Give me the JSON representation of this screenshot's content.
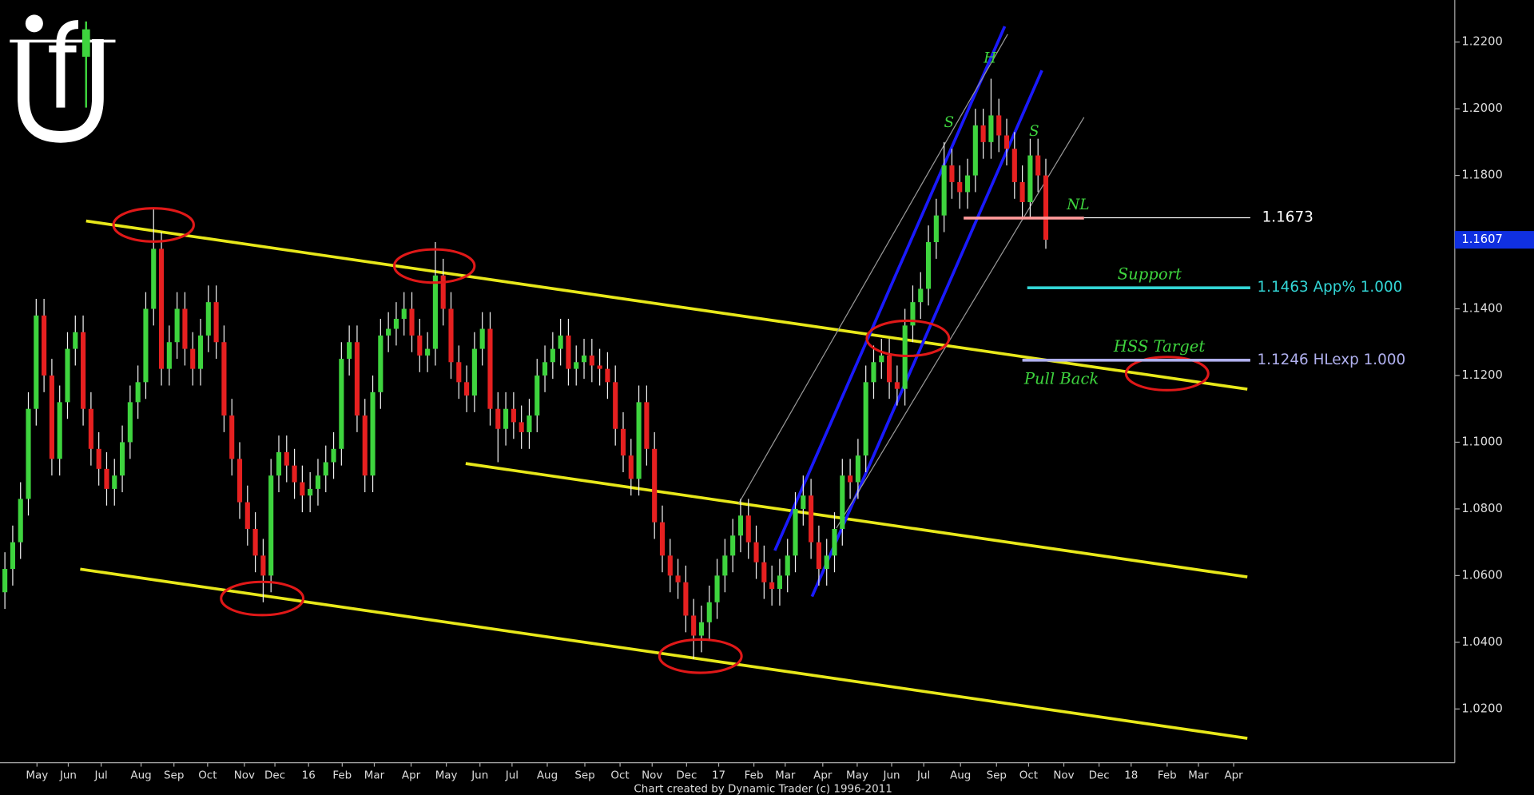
{
  "chart_data": {
    "type": "candlestick",
    "x": [
      0,
      1,
      2,
      3,
      4,
      5,
      6,
      7,
      8,
      9,
      10,
      11,
      12,
      13,
      14,
      15,
      16,
      17,
      18,
      19,
      20,
      21,
      22,
      23,
      24,
      25,
      26,
      27,
      28,
      29,
      30,
      31,
      32,
      33,
      34,
      35,
      36,
      37,
      38,
      39,
      40,
      41,
      42,
      43,
      44,
      45,
      46,
      47,
      48,
      49,
      50,
      51,
      52,
      53,
      54,
      55,
      56,
      57,
      58,
      59,
      60,
      61,
      62,
      63,
      64,
      65,
      66,
      67,
      68,
      69,
      70,
      71,
      72,
      73,
      74,
      75,
      76,
      77,
      78,
      79,
      80,
      81,
      82,
      83,
      84,
      85,
      86,
      87,
      88,
      89,
      90,
      91,
      92,
      93,
      94,
      95,
      96,
      97,
      98,
      99,
      100,
      101,
      102,
      103,
      104,
      105,
      106,
      107,
      108,
      109,
      110,
      111,
      112,
      113,
      114,
      115,
      116,
      117,
      118,
      119,
      120,
      121,
      122,
      123,
      124,
      125,
      126,
      127,
      128,
      129,
      130,
      131,
      132,
      133
    ],
    "open": [
      1.055,
      1.062,
      1.07,
      1.083,
      1.11,
      1.138,
      1.12,
      1.095,
      1.112,
      1.128,
      1.133,
      1.11,
      1.098,
      1.092,
      1.086,
      1.09,
      1.1,
      1.112,
      1.118,
      1.14,
      1.158,
      1.122,
      1.13,
      1.14,
      1.128,
      1.122,
      1.132,
      1.142,
      1.13,
      1.108,
      1.095,
      1.082,
      1.074,
      1.066,
      1.06,
      1.09,
      1.097,
      1.093,
      1.088,
      1.084,
      1.086,
      1.09,
      1.094,
      1.098,
      1.125,
      1.13,
      1.108,
      1.09,
      1.115,
      1.132,
      1.134,
      1.137,
      1.14,
      1.132,
      1.126,
      1.128,
      1.15,
      1.14,
      1.124,
      1.118,
      1.114,
      1.128,
      1.134,
      1.11,
      1.104,
      1.11,
      1.106,
      1.103,
      1.108,
      1.12,
      1.124,
      1.128,
      1.132,
      1.122,
      1.124,
      1.126,
      1.123,
      1.122,
      1.118,
      1.104,
      1.096,
      1.089,
      1.112,
      1.098,
      1.076,
      1.066,
      1.06,
      1.058,
      1.048,
      1.042,
      1.046,
      1.052,
      1.06,
      1.066,
      1.072,
      1.078,
      1.07,
      1.064,
      1.058,
      1.056,
      1.06,
      1.066,
      1.08,
      1.084,
      1.07,
      1.062,
      1.066,
      1.074,
      1.09,
      1.088,
      1.096,
      1.118,
      1.124,
      1.126,
      1.118,
      1.116,
      1.135,
      1.142,
      1.146,
      1.16,
      1.168,
      1.183,
      1.178,
      1.175,
      1.18,
      1.195,
      1.19,
      1.198,
      1.192,
      1.188,
      1.178,
      1.172,
      1.186,
      1.18
    ],
    "high": [
      1.067,
      1.075,
      1.088,
      1.115,
      1.143,
      1.143,
      1.125,
      1.117,
      1.133,
      1.138,
      1.138,
      1.115,
      1.103,
      1.097,
      1.095,
      1.105,
      1.117,
      1.123,
      1.145,
      1.17,
      1.163,
      1.135,
      1.145,
      1.145,
      1.133,
      1.137,
      1.147,
      1.147,
      1.135,
      1.113,
      1.1,
      1.087,
      1.079,
      1.071,
      1.095,
      1.102,
      1.102,
      1.098,
      1.093,
      1.091,
      1.095,
      1.099,
      1.103,
      1.13,
      1.135,
      1.135,
      1.113,
      1.12,
      1.137,
      1.139,
      1.142,
      1.145,
      1.145,
      1.137,
      1.133,
      1.16,
      1.155,
      1.145,
      1.129,
      1.123,
      1.133,
      1.139,
      1.139,
      1.115,
      1.115,
      1.115,
      1.111,
      1.113,
      1.125,
      1.129,
      1.133,
      1.137,
      1.137,
      1.129,
      1.131,
      1.131,
      1.128,
      1.127,
      1.123,
      1.109,
      1.101,
      1.117,
      1.117,
      1.103,
      1.081,
      1.071,
      1.065,
      1.063,
      1.053,
      1.051,
      1.057,
      1.065,
      1.071,
      1.077,
      1.083,
      1.083,
      1.075,
      1.069,
      1.063,
      1.065,
      1.071,
      1.085,
      1.09,
      1.089,
      1.075,
      1.071,
      1.079,
      1.095,
      1.095,
      1.101,
      1.123,
      1.129,
      1.131,
      1.131,
      1.123,
      1.14,
      1.147,
      1.151,
      1.165,
      1.173,
      1.19,
      1.188,
      1.183,
      1.185,
      1.2,
      1.2,
      1.209,
      1.203,
      1.197,
      1.193,
      1.183,
      1.191,
      1.191,
      1.185
    ],
    "low": [
      1.05,
      1.057,
      1.065,
      1.078,
      1.105,
      1.115,
      1.09,
      1.09,
      1.107,
      1.123,
      1.105,
      1.093,
      1.087,
      1.081,
      1.081,
      1.085,
      1.095,
      1.107,
      1.113,
      1.135,
      1.117,
      1.117,
      1.125,
      1.123,
      1.117,
      1.117,
      1.127,
      1.125,
      1.103,
      1.09,
      1.077,
      1.069,
      1.061,
      1.052,
      1.055,
      1.085,
      1.088,
      1.083,
      1.079,
      1.079,
      1.081,
      1.085,
      1.089,
      1.093,
      1.12,
      1.103,
      1.085,
      1.085,
      1.11,
      1.127,
      1.129,
      1.132,
      1.127,
      1.121,
      1.121,
      1.123,
      1.135,
      1.119,
      1.113,
      1.109,
      1.109,
      1.123,
      1.105,
      1.094,
      1.099,
      1.101,
      1.098,
      1.098,
      1.103,
      1.115,
      1.119,
      1.123,
      1.117,
      1.117,
      1.119,
      1.118,
      1.117,
      1.113,
      1.099,
      1.091,
      1.084,
      1.084,
      1.093,
      1.071,
      1.061,
      1.055,
      1.053,
      1.043,
      1.035,
      1.037,
      1.041,
      1.047,
      1.055,
      1.061,
      1.067,
      1.065,
      1.059,
      1.053,
      1.051,
      1.051,
      1.055,
      1.061,
      1.075,
      1.065,
      1.057,
      1.057,
      1.061,
      1.069,
      1.083,
      1.083,
      1.091,
      1.113,
      1.119,
      1.113,
      1.111,
      1.111,
      1.13,
      1.137,
      1.141,
      1.155,
      1.163,
      1.173,
      1.17,
      1.17,
      1.175,
      1.185,
      1.185,
      1.187,
      1.183,
      1.173,
      1.167,
      1.167,
      1.175,
      1.158
    ],
    "close": [
      1.062,
      1.07,
      1.083,
      1.11,
      1.138,
      1.12,
      1.095,
      1.112,
      1.128,
      1.133,
      1.11,
      1.098,
      1.092,
      1.086,
      1.09,
      1.1,
      1.112,
      1.118,
      1.14,
      1.158,
      1.122,
      1.13,
      1.14,
      1.128,
      1.122,
      1.132,
      1.142,
      1.13,
      1.108,
      1.095,
      1.082,
      1.074,
      1.066,
      1.06,
      1.09,
      1.097,
      1.093,
      1.088,
      1.084,
      1.086,
      1.09,
      1.094,
      1.098,
      1.125,
      1.13,
      1.108,
      1.09,
      1.115,
      1.132,
      1.134,
      1.137,
      1.14,
      1.132,
      1.126,
      1.128,
      1.15,
      1.14,
      1.124,
      1.118,
      1.114,
      1.128,
      1.134,
      1.11,
      1.104,
      1.11,
      1.106,
      1.103,
      1.108,
      1.12,
      1.124,
      1.128,
      1.132,
      1.122,
      1.124,
      1.126,
      1.123,
      1.122,
      1.118,
      1.104,
      1.096,
      1.089,
      1.112,
      1.098,
      1.076,
      1.066,
      1.06,
      1.058,
      1.048,
      1.042,
      1.046,
      1.052,
      1.06,
      1.066,
      1.072,
      1.078,
      1.07,
      1.064,
      1.058,
      1.056,
      1.06,
      1.066,
      1.08,
      1.084,
      1.07,
      1.062,
      1.066,
      1.074,
      1.09,
      1.088,
      1.096,
      1.118,
      1.124,
      1.126,
      1.118,
      1.116,
      1.135,
      1.142,
      1.146,
      1.16,
      1.168,
      1.183,
      1.178,
      1.175,
      1.18,
      1.195,
      1.19,
      1.198,
      1.192,
      1.188,
      1.178,
      1.172,
      1.186,
      1.18,
      1.1607
    ],
    "up_color": "#3ed43e",
    "down_color": "#e62020",
    "xlim": [
      -0.625,
      185.25
    ],
    "xticks": [
      {
        "value": 4.1,
        "label": "May"
      },
      {
        "value": 8.1,
        "label": "Jun"
      },
      {
        "value": 12.3,
        "label": "Jul"
      },
      {
        "value": 17.4,
        "label": "Aug"
      },
      {
        "value": 21.6,
        "label": "Sep"
      },
      {
        "value": 25.9,
        "label": "Oct"
      },
      {
        "value": 30.6,
        "label": "Nov"
      },
      {
        "value": 34.5,
        "label": "Dec"
      },
      {
        "value": 38.8,
        "label": "16"
      },
      {
        "value": 43.1,
        "label": "Feb"
      },
      {
        "value": 47.2,
        "label": "Mar"
      },
      {
        "value": 51.9,
        "label": "Apr"
      },
      {
        "value": 56.4,
        "label": "May"
      },
      {
        "value": 60.7,
        "label": "Jun"
      },
      {
        "value": 64.8,
        "label": "Jul"
      },
      {
        "value": 69.3,
        "label": "Aug"
      },
      {
        "value": 74.1,
        "label": "Sep"
      },
      {
        "value": 78.6,
        "label": "Oct"
      },
      {
        "value": 82.7,
        "label": "Nov"
      },
      {
        "value": 87.1,
        "label": "Dec"
      },
      {
        "value": 91.2,
        "label": "17"
      },
      {
        "value": 95.7,
        "label": "Feb"
      },
      {
        "value": 99.7,
        "label": "Mar"
      },
      {
        "value": 104.5,
        "label": "Apr"
      },
      {
        "value": 108.9,
        "label": "May"
      },
      {
        "value": 113.3,
        "label": "Jun"
      },
      {
        "value": 117.4,
        "label": "Jul"
      },
      {
        "value": 122.1,
        "label": "Aug"
      },
      {
        "value": 126.7,
        "label": "Sep"
      },
      {
        "value": 130.8,
        "label": "Oct"
      },
      {
        "value": 135.3,
        "label": "Nov"
      },
      {
        "value": 139.8,
        "label": "Dec"
      },
      {
        "value": 143.9,
        "label": "18"
      },
      {
        "value": 148.5,
        "label": "Feb"
      },
      {
        "value": 152.5,
        "label": "Mar"
      },
      {
        "value": 157.0,
        "label": "Apr"
      }
    ],
    "ylim": [
      1.00387,
      1.23261
    ],
    "yticks": [
      {
        "value": 1.22,
        "label": "1.2200"
      },
      {
        "value": 1.2,
        "label": "1.2000"
      },
      {
        "value": 1.18,
        "label": "1.1800"
      },
      {
        "value": 1.14,
        "label": "1.1400"
      },
      {
        "value": 1.12,
        "label": "1.1200"
      },
      {
        "value": 1.1,
        "label": "1.1000"
      },
      {
        "value": 1.08,
        "label": "1.0800"
      },
      {
        "value": 1.06,
        "label": "1.0600"
      },
      {
        "value": 1.04,
        "label": "1.0400"
      },
      {
        "value": 1.02,
        "label": "1.0200"
      }
    ],
    "last_price": 1.1607,
    "levels": [
      {
        "value": 1.1673,
        "label": "1.1673",
        "color": "#ffffff"
      },
      {
        "value": 1.1463,
        "label": "1.1463 App% 1.000",
        "color": "#33d6d6"
      },
      {
        "value": 1.1246,
        "label": "1.1246 HLexp 1.000",
        "color": "#b0b0ee"
      }
    ],
    "annotations": [
      "H",
      "S",
      "S",
      "NL",
      "Support",
      "HSS Target",
      "Pull Back"
    ],
    "footer": "Chart created by Dynamic Trader (c) 1996-2011"
  }
}
